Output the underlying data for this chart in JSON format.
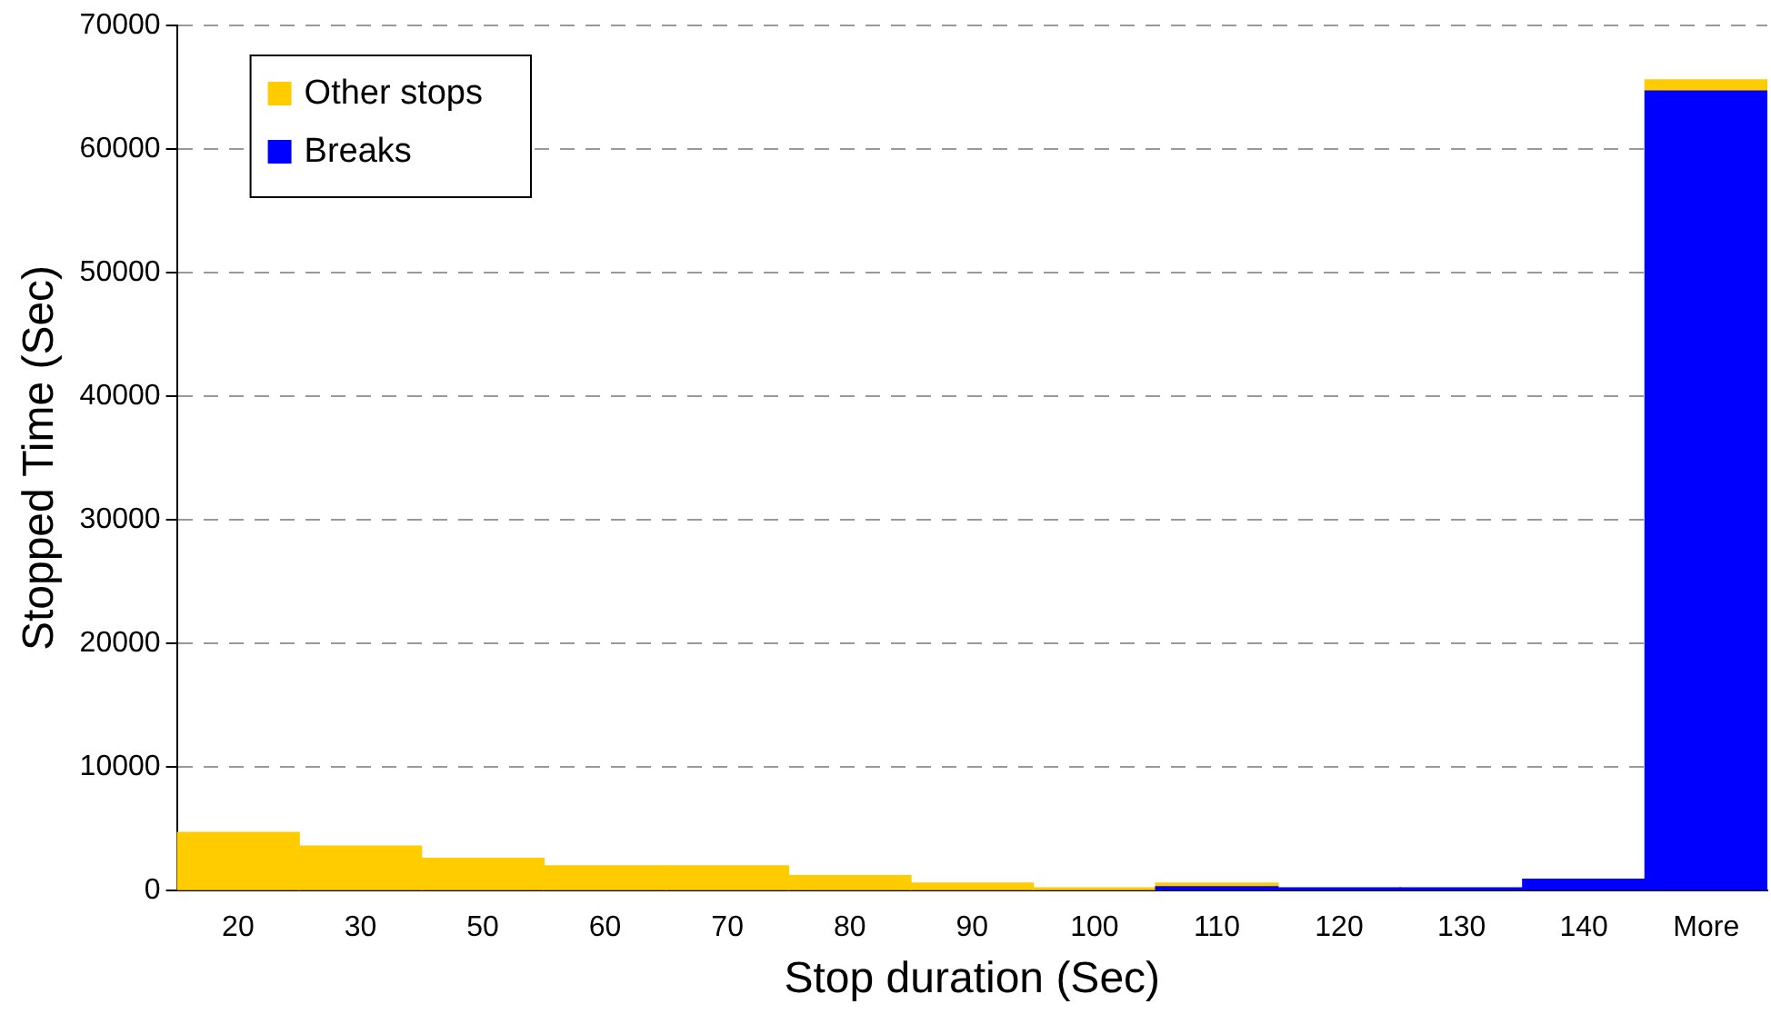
{
  "chart_data": {
    "type": "bar",
    "xlabel": "Stop duration (Sec)",
    "ylabel": "Stopped Time (Sec)",
    "categories": [
      "20",
      "30",
      "50",
      "60",
      "70",
      "80",
      "90",
      "100",
      "110",
      "120",
      "130",
      "140",
      "More"
    ],
    "stacked": true,
    "series": [
      {
        "name": "Breaks",
        "color": "#0000ff",
        "values": [
          null,
          null,
          null,
          null,
          null,
          null,
          null,
          null,
          300,
          200,
          200,
          900,
          64700
        ]
      },
      {
        "name": "Other stops",
        "color": "#ffcc00",
        "values": [
          4700,
          3600,
          2600,
          2000,
          2000,
          1200,
          600,
          200,
          300,
          null,
          null,
          null,
          900
        ]
      }
    ],
    "ylim": [
      0,
      70000
    ],
    "yticks": [
      0,
      10000,
      20000,
      30000,
      40000,
      50000,
      60000,
      70000
    ],
    "grid": "y",
    "legend": "top left"
  }
}
